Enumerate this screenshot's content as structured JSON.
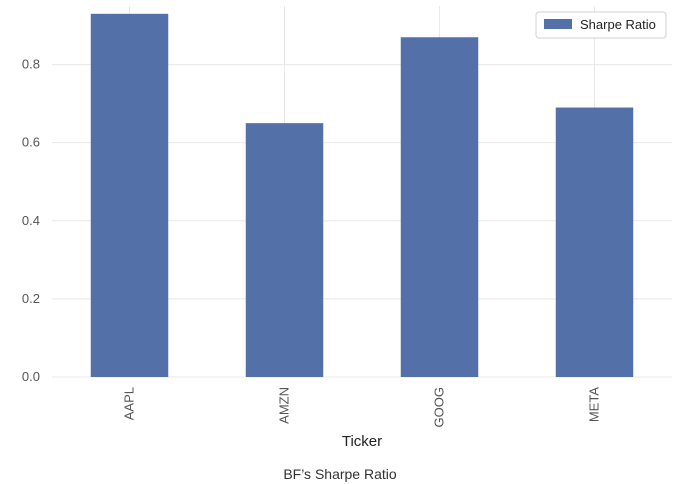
{
  "chart_data": {
    "type": "bar",
    "categories": [
      "AAPL",
      "AMZN",
      "GOOG",
      "META"
    ],
    "series": [
      {
        "name": "Sharpe Ratio",
        "values": [
          0.93,
          0.65,
          0.87,
          0.69
        ],
        "color": "#5470a8"
      }
    ],
    "xlabel": "Ticker",
    "ylabel": "",
    "ylim": [
      0,
      0.95
    ],
    "yticks": [
      0.0,
      0.2,
      0.4,
      0.6,
      0.8
    ],
    "ytick_labels": [
      "0.0",
      "0.2",
      "0.4",
      "0.6",
      "0.8"
    ],
    "grid": true,
    "grid_color": "#e8e8e8",
    "legend_position": "top-right",
    "x_tick_rotation": "vertical"
  },
  "caption": "BF’s Sharpe Ratio"
}
